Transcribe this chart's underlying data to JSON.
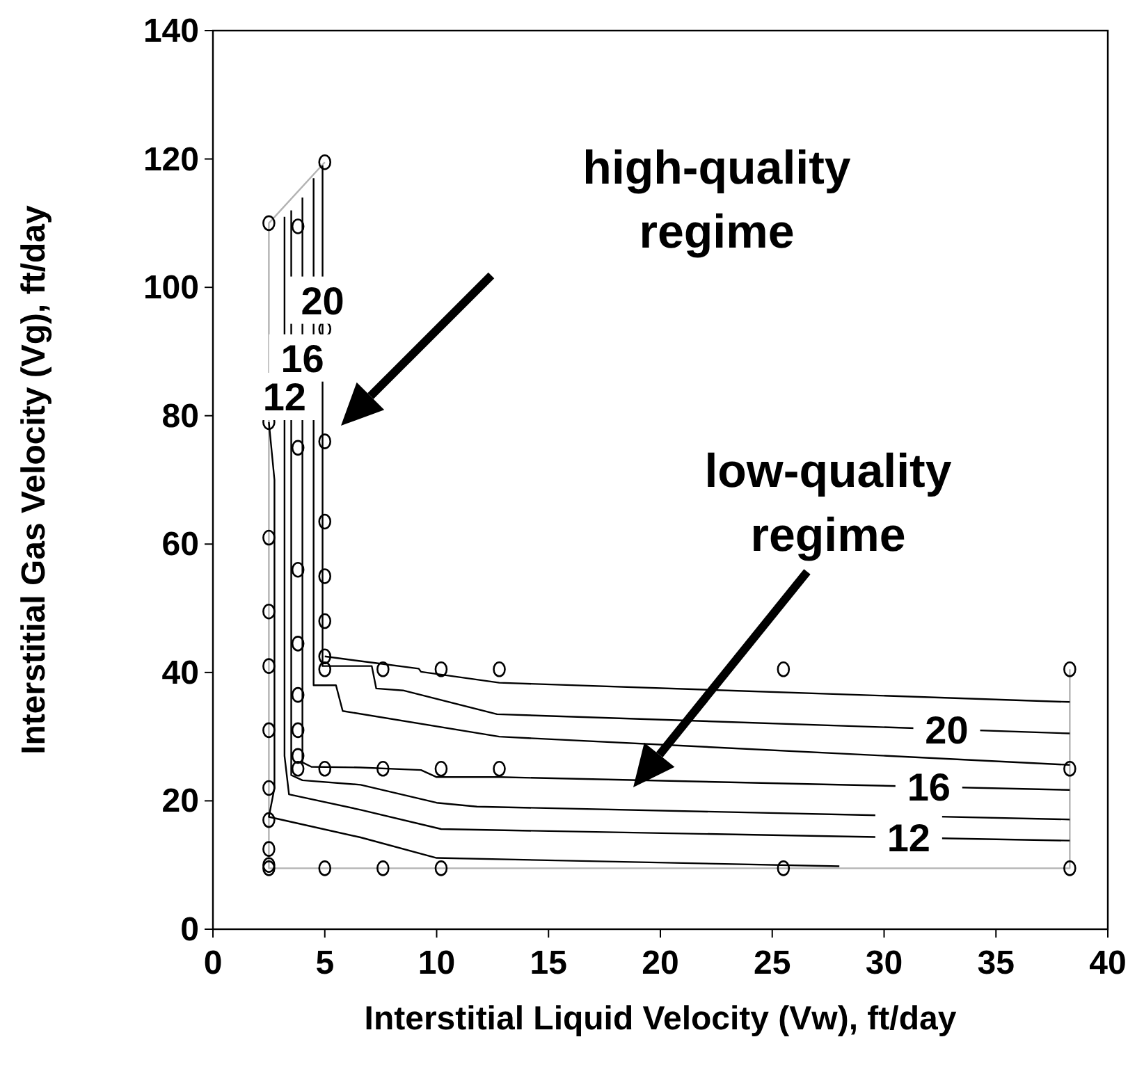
{
  "chart_data": {
    "type": "line",
    "xlabel": "Interstitial Liquid Velocity (Vw), ft/day",
    "ylabel": "Interstitial Gas Velocity (Vg), ft/day",
    "xlim": [
      0,
      40
    ],
    "xticks": [
      0,
      5,
      10,
      15,
      20,
      25,
      30,
      35,
      40
    ],
    "ylim": [
      0,
      140
    ],
    "yticks": [
      0,
      20,
      40,
      60,
      80,
      100,
      120,
      140
    ],
    "grid": false,
    "series": [
      {
        "color": "#b3b3b3",
        "x": [
          5,
          2.5,
          2.5,
          38.3,
          38.3
        ],
        "values": [
          119.5,
          110,
          9.5,
          9.5,
          40.5
        ]
      },
      {
        "type": "line",
        "color": "#000000",
        "x": [
          2.5,
          2.75,
          2.75,
          2.5,
          6.6,
          10,
          28
        ],
        "values": [
          79,
          70,
          22,
          17.5,
          14.3,
          11.1,
          9.8
        ]
      },
      {
        "type": "line",
        "color": "#000000",
        "x": [
          3.2,
          3.2,
          3.4,
          6.6,
          10.2,
          38.3
        ],
        "values": [
          111,
          27,
          21,
          18.6,
          15.6,
          13.8
        ]
      },
      {
        "type": "line",
        "color": "#000000",
        "x": [
          3.5,
          3.5,
          4,
          6.6,
          10,
          11.8,
          38.3
        ],
        "values": [
          112,
          24,
          23.2,
          22.5,
          19.7,
          19.1,
          17.1
        ]
      },
      {
        "type": "line",
        "color": "#000000",
        "x": [
          4,
          4,
          4.4,
          6.6,
          9.3,
          10,
          12.8,
          38.3
        ],
        "values": [
          114,
          26,
          25.3,
          25.2,
          24.8,
          23.7,
          23.7,
          21.7
        ]
      },
      {
        "type": "line",
        "color": "#000000",
        "x": [
          4.5,
          4.5,
          5.5,
          5.8,
          12.8,
          38.3
        ],
        "values": [
          117,
          38,
          38,
          34,
          30,
          25.6
        ]
      },
      {
        "type": "line",
        "color": "#000000",
        "x": [
          4.9,
          4.9,
          7.1,
          7.3,
          8.5,
          12.7,
          38.3
        ],
        "values": [
          119,
          41,
          41,
          37.5,
          37.2,
          33.5,
          30.5
        ]
      },
      {
        "type": "line",
        "color": "#000000",
        "x": [
          5,
          7.2,
          9.2,
          9.3,
          12.8,
          38.3
        ],
        "values": [
          42.5,
          41.5,
          40.6,
          40.1,
          38.4,
          35.4
        ]
      },
      {
        "type": "scatter",
        "color": "#000000",
        "marker": "circle",
        "x": [
          2.5,
          2.5,
          2.5,
          2.5,
          2.5,
          2.5,
          2.5,
          2.5,
          2.5,
          2.5,
          2.5,
          3.8,
          3.8,
          3.8,
          3.8,
          3.8,
          3.8,
          3.8,
          3.8,
          5,
          5,
          5,
          5,
          5,
          5,
          5,
          5,
          5,
          5,
          7.6,
          7.6,
          7.6,
          10.2,
          10.2,
          10.2,
          12.8,
          12.8,
          25.5,
          25.5,
          38.3,
          38.3,
          38.3
        ],
        "values": [
          110,
          79,
          61,
          49.5,
          41,
          31,
          22,
          17,
          12.5,
          10,
          9.5,
          109.5,
          75,
          56,
          44.5,
          36.5,
          31,
          27,
          25,
          119.5,
          93.5,
          76,
          63.5,
          55,
          48,
          42.5,
          40.5,
          25,
          9.5,
          40.5,
          25,
          9.5,
          40.5,
          25,
          9.5,
          40.5,
          25,
          40.5,
          9.5,
          40.5,
          25,
          9.5
        ]
      }
    ],
    "annotations": [
      "high-quality regime",
      "low-quality regime",
      {
        "text": "20",
        "x": 4.9,
        "y": 98
      },
      {
        "text": "16",
        "x": 4,
        "y": 89
      },
      {
        "text": "12",
        "x": 3.2,
        "y": 83
      },
      {
        "text": "20",
        "x": 32.8,
        "y": 31.1
      },
      {
        "text": "16",
        "x": 32,
        "y": 22.2
      },
      {
        "text": "12",
        "x": 31.1,
        "y": 14.3
      }
    ]
  }
}
